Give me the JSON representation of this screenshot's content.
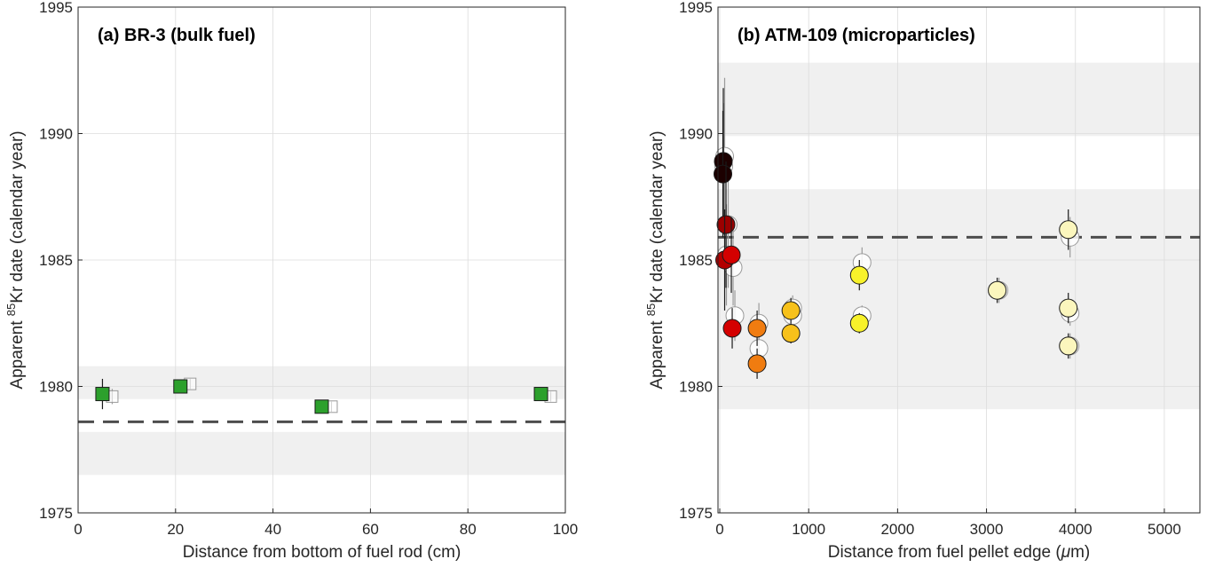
{
  "chart_data": [
    {
      "type": "scatter",
      "title": "(a) BR-3 (bulk fuel)",
      "xlabel": "Distance from bottom of fuel rod (cm)",
      "ylabel_pre": "Apparent ",
      "ylabel_sup": "85",
      "ylabel_post": "Kr date (calendar year)",
      "xlim": [
        0,
        100
      ],
      "ylim": [
        1975,
        1995
      ],
      "xticks": [
        "0",
        "20",
        "40",
        "60",
        "80",
        "100"
      ],
      "yticks": [
        "1975",
        "1980",
        "1985",
        "1990",
        "1995"
      ],
      "grid": true,
      "reference_line": 1978.6,
      "shaded_bands": [
        [
          1976.5,
          1978.2
        ],
        [
          1979.5,
          1980.8
        ]
      ],
      "series": [
        {
          "marker": "square",
          "fill": "#2ca02c",
          "points": [
            {
              "x": 5,
              "y": 1979.7,
              "err": 0.6
            },
            {
              "x": 21,
              "y": 1980.0,
              "err": 0.2
            },
            {
              "x": 50,
              "y": 1979.2,
              "err": 0.2
            },
            {
              "x": 95,
              "y": 1979.7,
              "err": 0.2
            }
          ]
        },
        {
          "marker": "square-open",
          "fill": "none",
          "points": [
            {
              "x": 7,
              "y": 1979.6,
              "err": 0.3
            },
            {
              "x": 23,
              "y": 1980.1,
              "err": 0.2
            },
            {
              "x": 52,
              "y": 1979.2,
              "err": 0.2
            },
            {
              "x": 97,
              "y": 1979.6,
              "err": 0.2
            }
          ]
        }
      ]
    },
    {
      "type": "scatter",
      "title": "(b) ATM-109 (microparticles)",
      "xlabel_pre": "Distance from fuel pellet edge (",
      "xlabel_mu": "μ",
      "xlabel_post": "m)",
      "ylabel_pre": "Apparent ",
      "ylabel_sup": "85",
      "ylabel_post": "Kr date (calendar year)",
      "xlim": [
        -20,
        5400
      ],
      "ylim": [
        1975,
        1995
      ],
      "xticks": [
        "0",
        "1000",
        "2000",
        "3000",
        "4000",
        "5000"
      ],
      "yticks": [
        "1975",
        "1980",
        "1985",
        "1990",
        "1995"
      ],
      "grid": true,
      "reference_line": 1985.9,
      "shaded_bands": [
        [
          1979.1,
          1987.8
        ],
        [
          1989.9,
          1992.8
        ]
      ],
      "series": [
        {
          "marker": "circle-open",
          "fill": "none",
          "points": [
            {
              "x": 55,
              "y": 1989.1,
              "err": 3.1
            },
            {
              "x": 45,
              "y": 1988.7,
              "err": 2.5
            },
            {
              "x": 95,
              "y": 1986.4,
              "err": 2.5
            },
            {
              "x": 75,
              "y": 1985.2,
              "err": 2.0
            },
            {
              "x": 150,
              "y": 1984.7,
              "err": 1.5
            },
            {
              "x": 170,
              "y": 1982.8,
              "err": 1.0
            },
            {
              "x": 440,
              "y": 1982.5,
              "err": 0.8
            },
            {
              "x": 440,
              "y": 1981.5,
              "err": 0.6
            },
            {
              "x": 820,
              "y": 1983.1,
              "err": 0.5
            },
            {
              "x": 820,
              "y": 1982.8,
              "err": 0.4
            },
            {
              "x": 1600,
              "y": 1984.9,
              "err": 0.6
            },
            {
              "x": 1600,
              "y": 1982.8,
              "err": 0.4
            },
            {
              "x": 3140,
              "y": 1983.8,
              "err": 0.5
            },
            {
              "x": 3940,
              "y": 1985.9,
              "err": 0.8
            },
            {
              "x": 3940,
              "y": 1982.9,
              "err": 0.5
            },
            {
              "x": 3940,
              "y": 1981.6,
              "err": 0.5
            }
          ]
        },
        {
          "marker": "circle",
          "fill": "by-point",
          "points": [
            {
              "x": 40,
              "y": 1988.9,
              "err": 2.9,
              "color": "#1c0000"
            },
            {
              "x": 35,
              "y": 1988.4,
              "err": 2.5,
              "color": "#1c0000"
            },
            {
              "x": 70,
              "y": 1986.4,
              "err": 2.5,
              "color": "#9b0000"
            },
            {
              "x": 55,
              "y": 1985.0,
              "err": 2.0,
              "color": "#b30000"
            },
            {
              "x": 130,
              "y": 1985.2,
              "err": 1.5,
              "color": "#d40000"
            },
            {
              "x": 140,
              "y": 1982.3,
              "err": 0.8,
              "color": "#d40000"
            },
            {
              "x": 420,
              "y": 1982.3,
              "err": 0.7,
              "color": "#f07c10"
            },
            {
              "x": 420,
              "y": 1980.9,
              "err": 0.6,
              "color": "#f07c10"
            },
            {
              "x": 800,
              "y": 1983.0,
              "err": 0.5,
              "color": "#f7c11b"
            },
            {
              "x": 800,
              "y": 1982.1,
              "err": 0.4,
              "color": "#f7c11b"
            },
            {
              "x": 1570,
              "y": 1984.4,
              "err": 0.6,
              "color": "#f8f22a"
            },
            {
              "x": 1570,
              "y": 1982.5,
              "err": 0.4,
              "color": "#f8f22a"
            },
            {
              "x": 3120,
              "y": 1983.8,
              "err": 0.5,
              "color": "#fbf6bd"
            },
            {
              "x": 3920,
              "y": 1986.2,
              "err": 0.8,
              "color": "#fbf6bd"
            },
            {
              "x": 3920,
              "y": 1983.1,
              "err": 0.6,
              "color": "#fbf6bd"
            },
            {
              "x": 3920,
              "y": 1981.6,
              "err": 0.5,
              "color": "#fbf6bd"
            }
          ]
        }
      ]
    }
  ]
}
